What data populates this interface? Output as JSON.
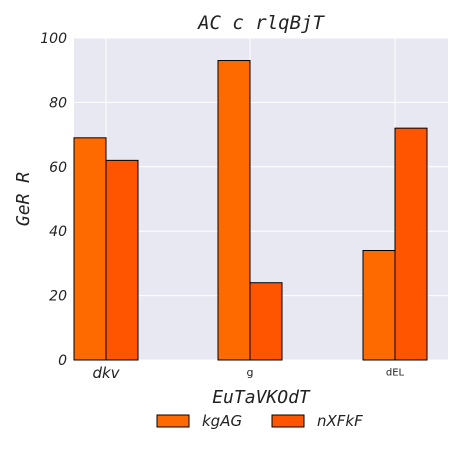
{
  "chart_data": {
    "type": "bar",
    "title": "AC c rlqBjT",
    "xlabel": "EuTaVKOdT",
    "ylabel": "GeR R",
    "categories": [
      "dkv",
      "g",
      "dEL"
    ],
    "series": [
      {
        "name": "kgAG",
        "values": [
          69,
          93,
          34
        ]
      },
      {
        "name": "nXFkF",
        "values": [
          62,
          24,
          72
        ]
      }
    ],
    "ylim": [
      0,
      100
    ],
    "yticks": [
      0,
      20,
      40,
      60,
      80,
      100
    ],
    "grid": true,
    "legend_position": "bottom-center"
  },
  "colors": {
    "plot_background": "#e8e8f2",
    "grid": "#ffffff",
    "series": [
      "#ff6a00",
      "#ff5500"
    ],
    "bar_edge": "#000000"
  }
}
